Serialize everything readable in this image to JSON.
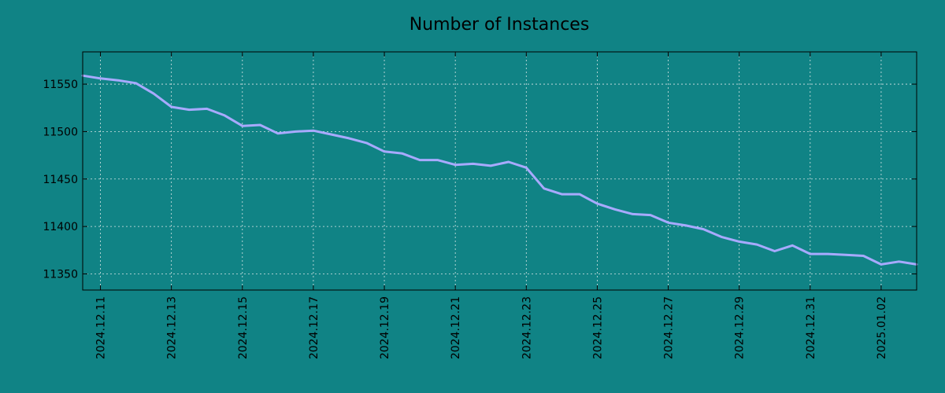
{
  "colors": {
    "background": "#108385",
    "line": "#a8aaff",
    "grid": "#d8e6e6"
  },
  "chart_data": {
    "type": "line",
    "title": "Number of Instances",
    "xlabel": "",
    "ylabel": "",
    "grid": true,
    "x_tick_labels": [
      "2024.12.11",
      "2024.12.13",
      "2024.12.15",
      "2024.12.17",
      "2024.12.19",
      "2024.12.21",
      "2024.12.23",
      "2024.12.25",
      "2024.12.27",
      "2024.12.29",
      "2024.12.31",
      "2025.01.02"
    ],
    "y_tick_labels": [
      "11350",
      "11400",
      "11450",
      "11500",
      "11550"
    ],
    "xlim": [
      "2024.12.10 12:00",
      "2025.01.03 00:00"
    ],
    "ylim": [
      11333,
      11584
    ],
    "x": [
      "2024.12.10 12:00",
      "2024.12.11 00:00",
      "2024.12.11 12:00",
      "2024.12.12 00:00",
      "2024.12.12 12:00",
      "2024.12.13 00:00",
      "2024.12.13 12:00",
      "2024.12.14 00:00",
      "2024.12.14 12:00",
      "2024.12.15 00:00",
      "2024.12.15 12:00",
      "2024.12.16 00:00",
      "2024.12.16 12:00",
      "2024.12.17 00:00",
      "2024.12.17 12:00",
      "2024.12.18 00:00",
      "2024.12.18 12:00",
      "2024.12.19 00:00",
      "2024.12.19 12:00",
      "2024.12.20 00:00",
      "2024.12.20 12:00",
      "2024.12.21 00:00",
      "2024.12.21 12:00",
      "2024.12.22 00:00",
      "2024.12.22 12:00",
      "2024.12.23 00:00",
      "2024.12.23 12:00",
      "2024.12.24 00:00",
      "2024.12.24 12:00",
      "2024.12.25 00:00",
      "2024.12.25 12:00",
      "2024.12.26 00:00",
      "2024.12.26 12:00",
      "2024.12.27 00:00",
      "2024.12.27 12:00",
      "2024.12.28 00:00",
      "2024.12.28 12:00",
      "2024.12.29 00:00",
      "2024.12.29 12:00",
      "2024.12.30 00:00",
      "2024.12.30 12:00",
      "2024.12.31 00:00",
      "2024.12.31 12:00",
      "2025.01.01 00:00",
      "2025.01.01 12:00",
      "2025.01.02 00:00",
      "2025.01.02 12:00",
      "2025.01.03 00:00"
    ],
    "series": [
      {
        "values": [
          11559,
          11556,
          11554,
          11551,
          11540,
          11526,
          11523,
          11524,
          11517,
          11506,
          11507,
          11498,
          11500,
          11501,
          11497,
          11493,
          11488,
          11479,
          11477,
          11470,
          11470,
          11465,
          11466,
          11464,
          11468,
          11462,
          11440,
          11434,
          11434,
          11424,
          11418,
          11413,
          11412,
          11404,
          11401,
          11397,
          11389,
          11384,
          11381,
          11374,
          11380,
          11371,
          11371,
          11370,
          11369,
          11360,
          11363,
          11360
        ]
      }
    ]
  }
}
